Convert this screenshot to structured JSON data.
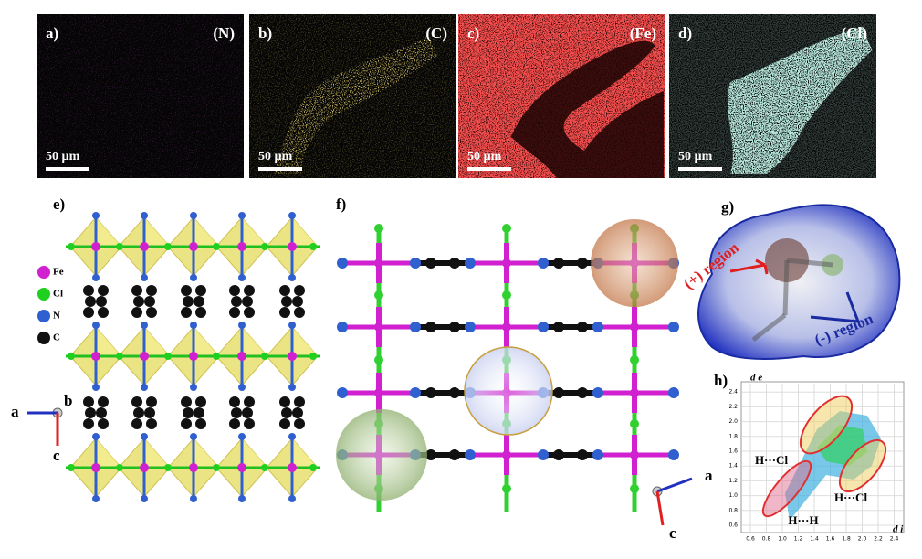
{
  "panels": [
    {
      "label": "a)",
      "element": "(N)",
      "scale": "50 µm"
    },
    {
      "label": "b)",
      "element": "(C)",
      "scale": "50 µm"
    },
    {
      "label": "c)",
      "element": "(Fe)",
      "scale": "50 µm"
    },
    {
      "label": "d)",
      "element": "(Cl)",
      "scale": "50 µm"
    }
  ],
  "structure_e": {
    "label": "e)",
    "legend": [
      "Fe",
      "Cl",
      "N",
      "C"
    ],
    "axes": [
      "a",
      "b",
      "c"
    ]
  },
  "structure_f": {
    "label": "f)",
    "axes": [
      "a",
      "c"
    ]
  },
  "surface_g": {
    "label": "g)",
    "positive": "(+) region",
    "negative": "(-) region"
  },
  "plot_h": {
    "label": "h)",
    "y_label": "d e",
    "x_label": "d i",
    "ticks": [
      "0.6",
      "0.8",
      "1.0",
      "1.2",
      "1.4",
      "1.6",
      "1.8",
      "2.0",
      "2.2",
      "2.4"
    ],
    "annotations": [
      "H···Cl",
      "H···Cl",
      "H···H"
    ]
  }
}
